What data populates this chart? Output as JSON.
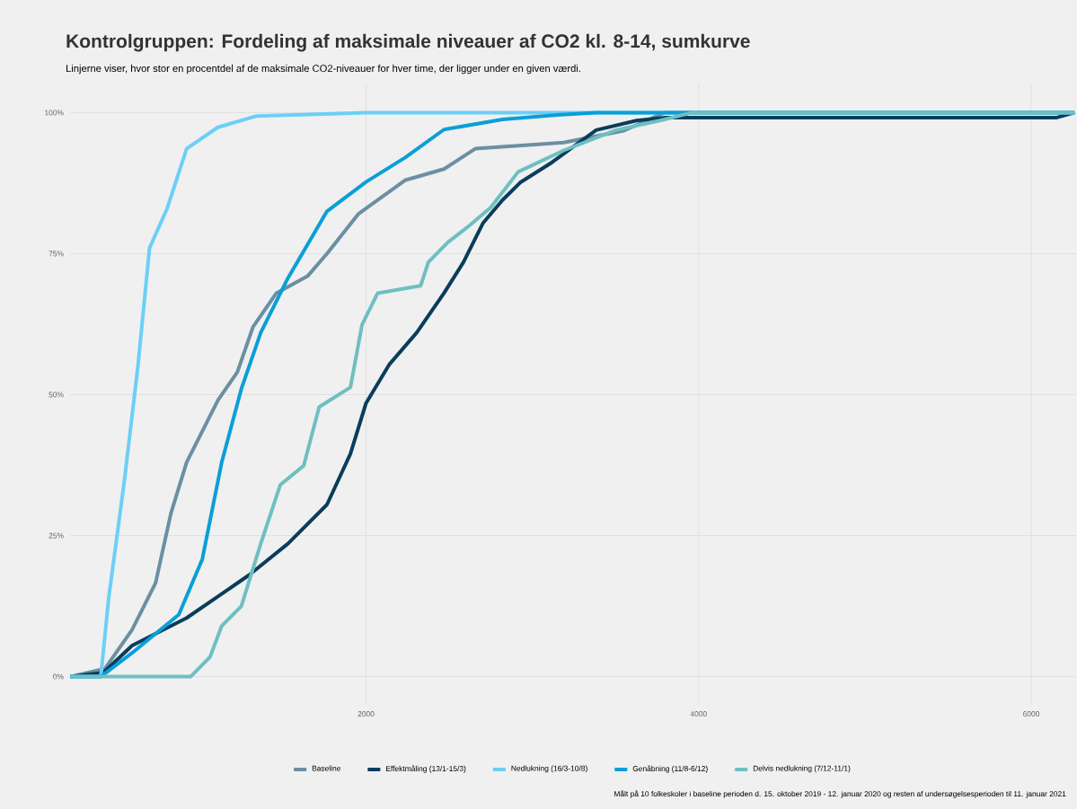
{
  "chart_data": {
    "type": "line",
    "title": "Kontrolgruppen: Fordeling af maksimale niveauer af CO2 kl. 8-14, sumkurve",
    "subtitle": "Linjerne viser, hvor stor en procentdel af de maksimale CO2-niveauer for hver time, der ligger under en given værdi.",
    "annotations": [
      "Målt på 10 folkeskoler i baseline perioden d. 15. oktober 2019 - 12. januar 2020 og resten af undersøgelsesperioden til 11. januar 2021"
    ],
    "xlim": [
      220,
      6270
    ],
    "ylim": [
      -5,
      105
    ],
    "xticks": [
      2000,
      4000,
      6000
    ],
    "yticks": [
      {
        "value": 0,
        "label": "0%"
      },
      {
        "value": 25,
        "label": "25%"
      },
      {
        "value": 50,
        "label": "50%"
      },
      {
        "value": 75,
        "label": "75%"
      },
      {
        "value": 100,
        "label": "100%"
      }
    ],
    "grid": true,
    "legend": "bottom",
    "series": [
      {
        "name": "Baseline",
        "color": "#6b8fa3",
        "x": [
          222,
          429,
          593,
          734,
          827,
          921,
          1109,
          1226,
          1320,
          1461,
          1648,
          1765,
          1953,
          2234,
          2469,
          2657,
          2995,
          3189,
          3551,
          3795,
          6260
        ],
        "values": [
          0,
          1.4,
          8.3,
          16.6,
          29,
          38,
          49,
          54,
          62,
          68,
          71,
          75,
          82,
          88,
          90,
          93.6,
          94.3,
          94.7,
          96.8,
          100,
          100
        ]
      },
      {
        "name": "Effektmåling (13/1-15/3)",
        "color": "#0a3d5c",
        "x": [
          222,
          420,
          593,
          921,
          1296,
          1531,
          1765,
          1906,
          2000,
          2141,
          2305,
          2469,
          2586,
          2703,
          2821,
          2927,
          3119,
          3384,
          3627,
          3800,
          6150,
          6260
        ],
        "values": [
          0,
          0.7,
          5.5,
          10.4,
          18,
          23.6,
          30.5,
          39.5,
          48.5,
          55.4,
          61,
          68,
          73.5,
          80.4,
          84.5,
          87.6,
          91.2,
          96.9,
          98.6,
          99.1,
          99.1,
          100
        ]
      },
      {
        "name": "Nedlukning (16/3-10/8)",
        "color": "#6ccff6",
        "x": [
          222,
          405,
          452,
          546,
          628,
          698,
          804,
          921,
          1109,
          1343,
          2000,
          6260
        ],
        "values": [
          0,
          0,
          13.9,
          34.6,
          55,
          76,
          83,
          93.6,
          97.4,
          99.4,
          100,
          100
        ]
      },
      {
        "name": "Genåbning (11/8-6/12)",
        "color": "#0a9fd8",
        "x": [
          222,
          405,
          593,
          874,
          1015,
          1132,
          1250,
          1367,
          1531,
          1765,
          2000,
          2234,
          2469,
          2821,
          3151,
          3384,
          6260
        ],
        "values": [
          0,
          0,
          4.2,
          11,
          20.8,
          38,
          51,
          61,
          70.7,
          82.5,
          87.7,
          92,
          97,
          98.8,
          99.6,
          100,
          100
        ]
      },
      {
        "name": "Delvis nedlukning (7/12-11/1)",
        "color": "#6fbfc0",
        "x": [
          222,
          945,
          1062,
          1132,
          1250,
          1367,
          1484,
          1625,
          1718,
          1906,
          1976,
          2070,
          2328,
          2375,
          2492,
          2610,
          2750,
          2915,
          3189,
          3503,
          3768,
          3962,
          6260
        ],
        "values": [
          0,
          0,
          3.5,
          9,
          12.5,
          23.6,
          34,
          37.4,
          47.8,
          51.3,
          62.4,
          68,
          69.3,
          73.5,
          77,
          79.7,
          83.2,
          89.5,
          93.3,
          96.9,
          98.6,
          100,
          100
        ]
      }
    ]
  }
}
